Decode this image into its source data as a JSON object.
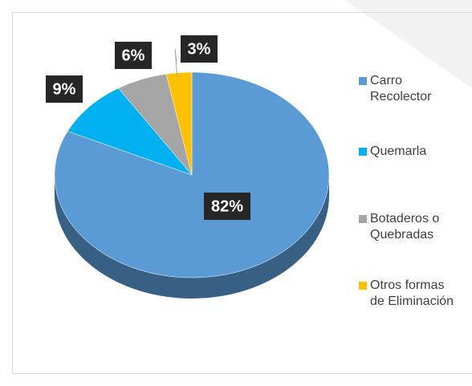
{
  "chart_data": {
    "type": "pie",
    "categories": [
      "Carro Recolector",
      "Quemarla",
      "Botaderos o Quebradas",
      "Otros formas de Eliminación"
    ],
    "values": [
      82,
      9,
      6,
      3
    ],
    "value_labels": [
      "82%",
      "9%",
      "6%",
      "3%"
    ],
    "colors": [
      "#5b9bd5",
      "#00b0f0",
      "#a5a5a5",
      "#ffc000"
    ],
    "legend": "right"
  }
}
